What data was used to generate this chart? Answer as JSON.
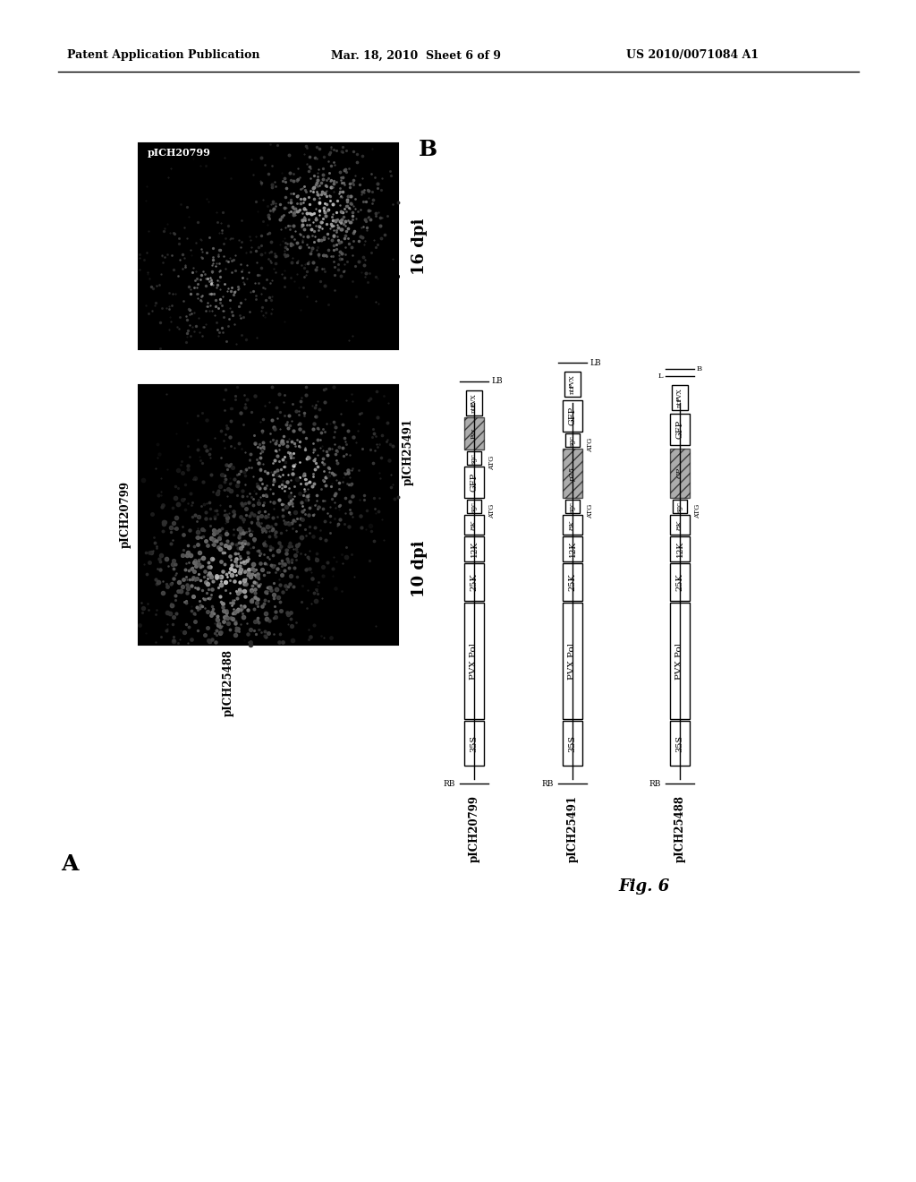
{
  "header_left": "Patent Application Publication",
  "header_mid": "Mar. 18, 2010  Sheet 6 of 9",
  "header_right": "US 2010/0071084 A1",
  "panel_A_label": "A",
  "panel_B_label": "B",
  "fig_label": "Fig. 6",
  "bg_color": "#ffffff"
}
